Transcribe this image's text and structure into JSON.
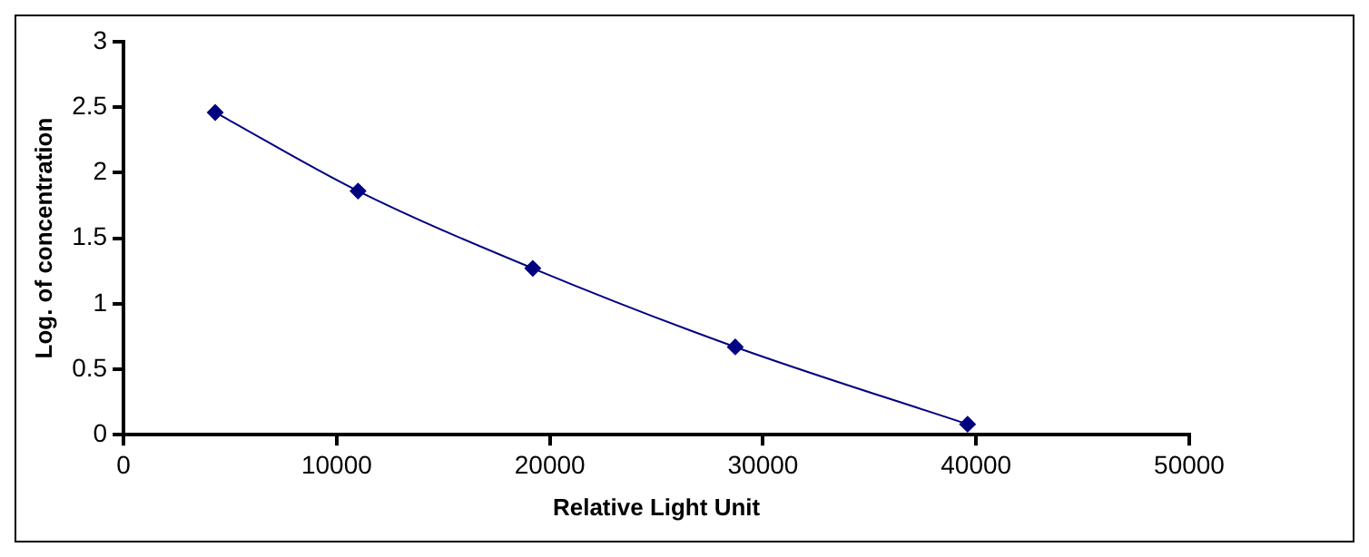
{
  "chart_data": {
    "type": "line",
    "xlabel": "Relative Light Unit",
    "ylabel": "Log. of concentration",
    "x": [
      4300,
      11000,
      19200,
      28700,
      39600
    ],
    "series": [
      {
        "color": "#000080",
        "values": [
          2.46,
          1.86,
          1.27,
          0.67,
          0.08
        ]
      }
    ],
    "xlim": [
      0,
      50000
    ],
    "xticks": [
      0,
      10000,
      20000,
      30000,
      40000,
      50000
    ],
    "ylim": [
      0,
      3
    ],
    "yticks": [
      0,
      0.5,
      1,
      1.5,
      2,
      2.5,
      3
    ],
    "grid": false,
    "legend": false,
    "marker": "diamond",
    "line_style": "solid"
  }
}
